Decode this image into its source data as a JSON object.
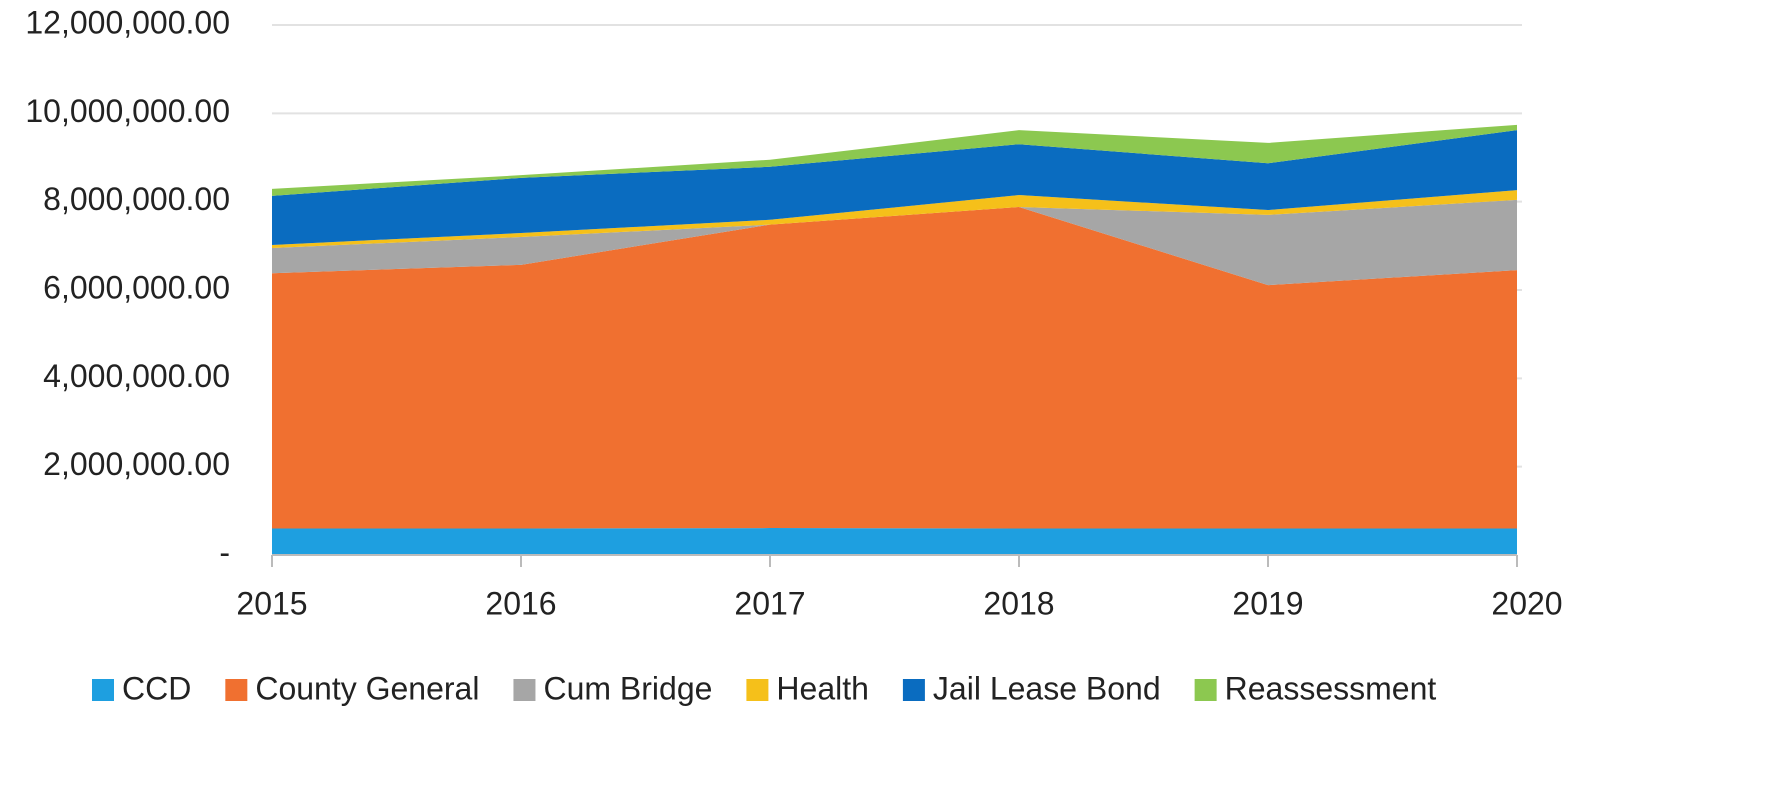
{
  "chart_data": {
    "type": "stacked_area",
    "categories": [
      "2015",
      "2016",
      "2017",
      "2018",
      "2019",
      "2020"
    ],
    "series": [
      {
        "name": "CCD",
        "color": "#1e9fe0",
        "values": [
          600000,
          600000,
          610000,
          600000,
          600000,
          600000
        ]
      },
      {
        "name": "County General",
        "color": "#f07030",
        "values": [
          5780000,
          5970000,
          6870000,
          7280000,
          5510000,
          5850000
        ]
      },
      {
        "name": "Cum Bridge",
        "color": "#a6a6a6",
        "values": [
          570000,
          630000,
          0,
          0,
          1590000,
          1590000
        ]
      },
      {
        "name": "Health",
        "color": "#f5c01a",
        "values": [
          70000,
          90000,
          110000,
          270000,
          110000,
          220000
        ]
      },
      {
        "name": "Jail Lease Bond",
        "color": "#0a6cc0",
        "values": [
          1110000,
          1250000,
          1200000,
          1150000,
          1060000,
          1360000
        ]
      },
      {
        "name": "Reassessment",
        "color": "#8cc850",
        "values": [
          160000,
          60000,
          160000,
          320000,
          460000,
          120000
        ]
      }
    ],
    "ylim": [
      0,
      12000000
    ],
    "yticks": [
      {
        "value": 0,
        "label": "-"
      },
      {
        "value": 2000000,
        "label": "2,000,000.00"
      },
      {
        "value": 4000000,
        "label": "4,000,000.00"
      },
      {
        "value": 6000000,
        "label": "6,000,000.00"
      },
      {
        "value": 8000000,
        "label": "8,000,000.00"
      },
      {
        "value": 10000000,
        "label": "10,000,000.00"
      },
      {
        "value": 12000000,
        "label": "12,000,000.00"
      }
    ],
    "grid": true,
    "legend": "bottom"
  }
}
